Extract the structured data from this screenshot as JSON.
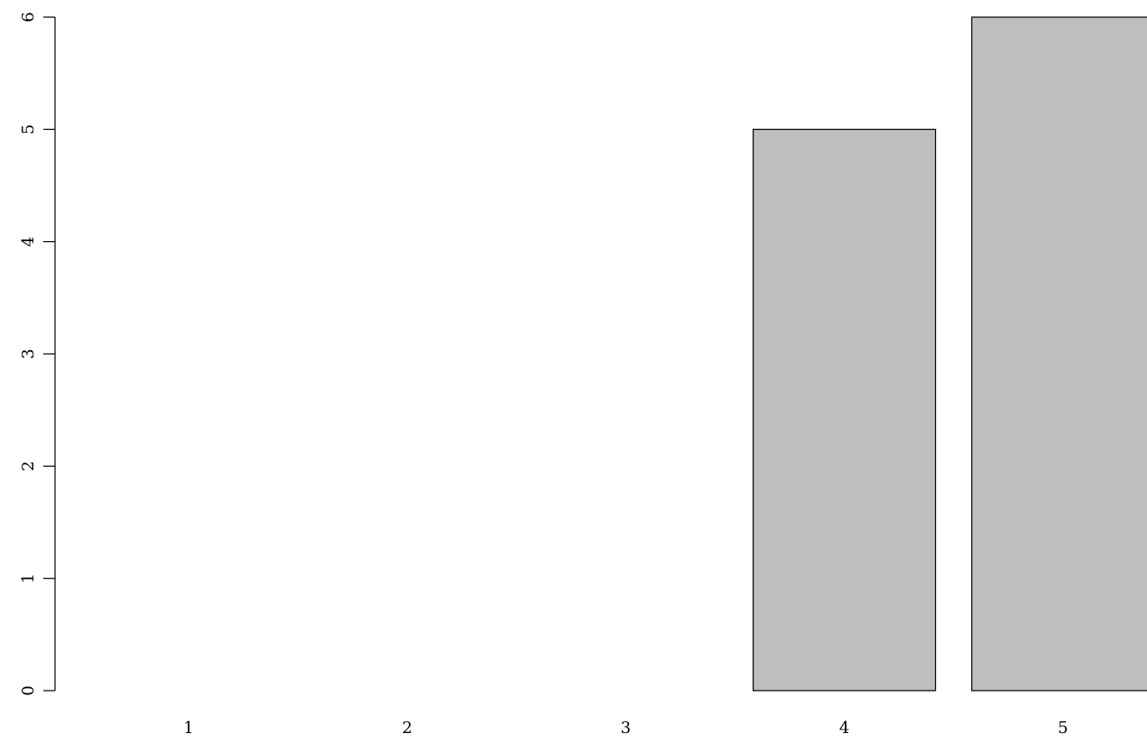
{
  "chart_data": {
    "type": "bar",
    "categories": [
      "1",
      "2",
      "3",
      "4",
      "5"
    ],
    "values": [
      0,
      0,
      0,
      5,
      6
    ],
    "title": "",
    "xlabel": "",
    "ylabel": "",
    "ylim": [
      0,
      6
    ],
    "yticks": [
      0,
      1,
      2,
      3,
      4,
      5,
      6
    ],
    "grid": false,
    "legend": "none",
    "bar_fill": "#bebebe",
    "bar_stroke": "#000000"
  }
}
